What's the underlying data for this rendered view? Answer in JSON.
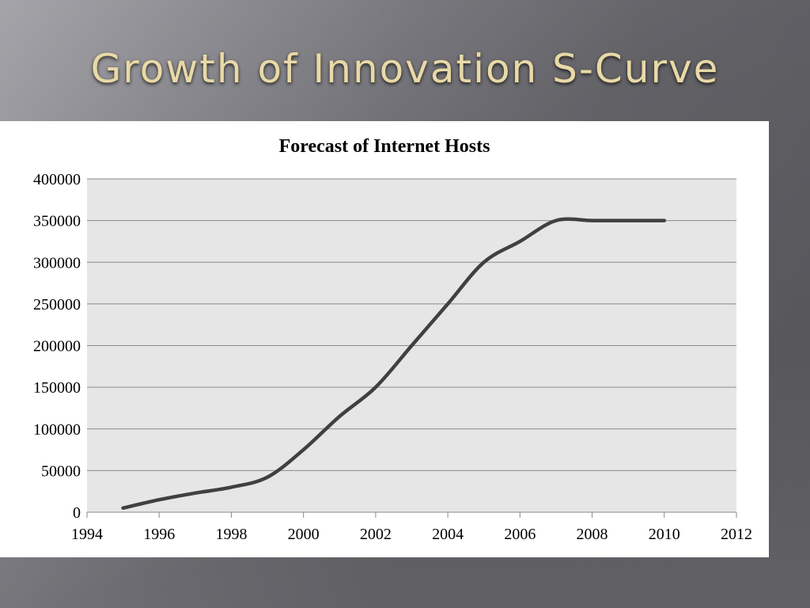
{
  "slide": {
    "title": "Growth of Innovation S-Curve"
  },
  "colors": {
    "plot_background": "#e6e6e6",
    "line": "#404040",
    "gridline": "#8a8a8a",
    "title_gold": "#e8d9a8"
  },
  "chart_data": {
    "type": "line",
    "title": "Forecast of Internet Hosts",
    "xlabel": "",
    "ylabel": "",
    "xlim": [
      1994,
      2012
    ],
    "ylim": [
      0,
      400000
    ],
    "x_ticks": [
      1994,
      1996,
      1998,
      2000,
      2002,
      2004,
      2006,
      2008,
      2010,
      2012
    ],
    "y_ticks": [
      0,
      50000,
      100000,
      150000,
      200000,
      250000,
      300000,
      350000,
      400000
    ],
    "grid": true,
    "legend": "none",
    "series": [
      {
        "x": [
          1995,
          1996,
          1997,
          1998,
          1999,
          2000,
          2001,
          2002,
          2003,
          2004,
          2005,
          2006,
          2007,
          2008,
          2009,
          2010
        ],
        "y": [
          5000,
          15000,
          23000,
          30000,
          42000,
          75000,
          115000,
          150000,
          200000,
          250000,
          300000,
          325000,
          350000,
          350000,
          350000,
          350000
        ]
      }
    ]
  }
}
